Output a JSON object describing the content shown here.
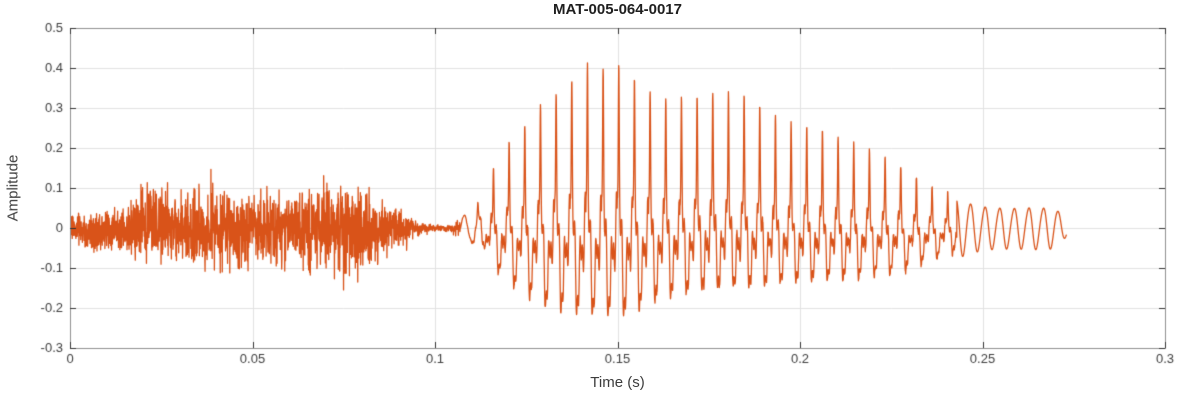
{
  "chart_data": {
    "type": "line",
    "chart_kind": "audio-waveform",
    "title": "MAT-005-064-0017",
    "xlabel": "Time (s)",
    "ylabel": "Amplitude",
    "xlim": [
      0,
      0.3
    ],
    "ylim": [
      -0.3,
      0.5
    ],
    "xticks": [
      0,
      0.05,
      0.1,
      0.15,
      0.2,
      0.25,
      0.3
    ],
    "xtick_labels": [
      "0",
      "0.05",
      "0.1",
      "0.15",
      "0.2",
      "0.25",
      "0.3"
    ],
    "yticks": [
      -0.3,
      -0.2,
      -0.1,
      0,
      0.1,
      0.2,
      0.3,
      0.4,
      0.5
    ],
    "ytick_labels": [
      "-0.3",
      "-0.2",
      "-0.1",
      "0",
      "0.1",
      "0.2",
      "0.3",
      "0.4",
      "0.5"
    ],
    "grid": true,
    "legend": "none",
    "line_color": "#D95319",
    "signal": {
      "duration_s": 0.273,
      "peak_amplitude": 0.41,
      "peak_time_s": 0.145,
      "min_amplitude": -0.27,
      "min_time_s": 0.15,
      "segments": [
        {
          "label": "unvoiced-noise-burst",
          "t_start": 0.0,
          "t_end": 0.096
        },
        {
          "label": "pause",
          "t_start": 0.096,
          "t_end": 0.107
        },
        {
          "label": "voiced-vowel",
          "t_start": 0.107,
          "t_end": 0.243,
          "f0_hz": 233
        },
        {
          "label": "decaying-tone-tail",
          "t_start": 0.243,
          "t_end": 0.273,
          "f_hz": 250
        }
      ],
      "envelope": {
        "t": [
          0,
          0.003,
          0.006,
          0.01,
          0.014,
          0.018,
          0.021,
          0.024,
          0.028,
          0.032,
          0.035,
          0.038,
          0.042,
          0.046,
          0.05,
          0.053,
          0.056,
          0.06,
          0.064,
          0.068,
          0.072,
          0.076,
          0.08,
          0.084,
          0.088,
          0.092,
          0.096,
          0.1,
          0.104,
          0.107,
          0.11,
          0.113,
          0.116,
          0.12,
          0.124,
          0.128,
          0.132,
          0.137,
          0.142,
          0.147,
          0.152,
          0.156,
          0.16,
          0.165,
          0.17,
          0.175,
          0.18,
          0.185,
          0.19,
          0.195,
          0.2,
          0.205,
          0.21,
          0.215,
          0.22,
          0.225,
          0.23,
          0.235,
          0.24,
          0.244,
          0.248,
          0.252,
          0.258,
          0.264,
          0.27,
          0.273
        ],
        "upper": [
          0.05,
          0.04,
          0.035,
          0.06,
          0.075,
          0.11,
          0.145,
          0.155,
          0.1,
          0.11,
          0.155,
          0.15,
          0.115,
          0.115,
          0.1,
          0.11,
          0.13,
          0.11,
          0.12,
          0.135,
          0.12,
          0.11,
          0.125,
          0.1,
          0.07,
          0.045,
          0.015,
          0.008,
          0.01,
          0.03,
          0.05,
          0.09,
          0.15,
          0.21,
          0.25,
          0.3,
          0.33,
          0.37,
          0.41,
          0.4,
          0.41,
          0.36,
          0.34,
          0.32,
          0.33,
          0.345,
          0.34,
          0.335,
          0.3,
          0.275,
          0.26,
          0.25,
          0.235,
          0.21,
          0.19,
          0.17,
          0.14,
          0.11,
          0.09,
          0.07,
          0.058,
          0.052,
          0.05,
          0.052,
          0.05,
          0.02
        ],
        "lower": [
          -0.05,
          -0.06,
          -0.08,
          -0.07,
          -0.075,
          -0.09,
          -0.1,
          -0.11,
          -0.1,
          -0.105,
          -0.115,
          -0.12,
          -0.13,
          -0.12,
          -0.12,
          -0.125,
          -0.14,
          -0.155,
          -0.13,
          -0.125,
          -0.14,
          -0.15,
          -0.12,
          -0.11,
          -0.085,
          -0.055,
          -0.02,
          -0.01,
          -0.012,
          -0.03,
          -0.05,
          -0.08,
          -0.12,
          -0.17,
          -0.2,
          -0.23,
          -0.25,
          -0.26,
          -0.265,
          -0.27,
          -0.27,
          -0.25,
          -0.225,
          -0.21,
          -0.2,
          -0.19,
          -0.185,
          -0.18,
          -0.175,
          -0.17,
          -0.165,
          -0.165,
          -0.16,
          -0.155,
          -0.15,
          -0.14,
          -0.13,
          -0.105,
          -0.085,
          -0.07,
          -0.055,
          -0.048,
          -0.046,
          -0.047,
          -0.045,
          -0.018
        ]
      }
    }
  },
  "style": {
    "background": "#FFFFFF",
    "axis_box_color": "#8F8F8F",
    "tick_color": "#333333",
    "tick_label_color": "#404040",
    "grid_color": "#E2E2E2",
    "title_color": "#1F1F1F",
    "axis_label_color": "#3D3D3D"
  }
}
